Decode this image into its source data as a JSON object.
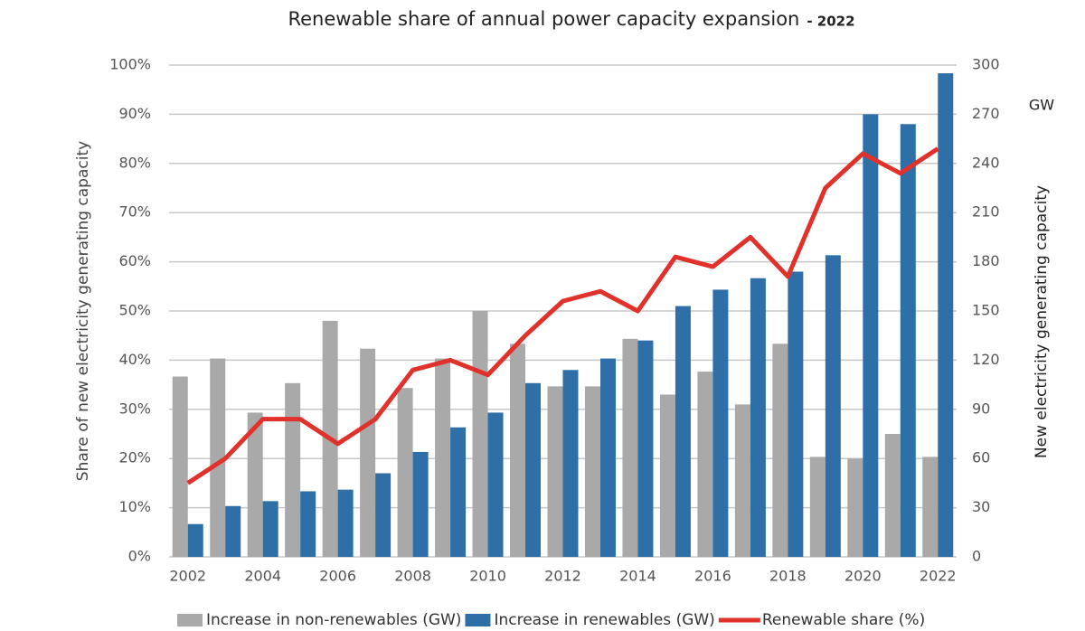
{
  "chart_data": {
    "type": "bar-line",
    "title": "Renewable share of annual power capacity expansion",
    "title_suffix": "- 2022",
    "y_label": "Share of new electricity generating capacity",
    "y2_label": "New electricity generating capacity",
    "y2_unit": "GW",
    "categories": [
      "2002",
      null,
      "2004",
      null,
      "2006",
      null,
      "2008",
      null,
      "2010",
      null,
      "2012",
      null,
      "2014",
      null,
      "2016",
      null,
      "2018",
      null,
      "2020",
      null,
      "2022"
    ],
    "series": [
      {
        "name": "Increase in non-renewables (GW)",
        "color": "#a9a9a9",
        "kind": "bar",
        "axis": "y2",
        "values": [
          110,
          121,
          88,
          106,
          144,
          127,
          103,
          121,
          150,
          130,
          104,
          104,
          133,
          99,
          113,
          93,
          130,
          61,
          60,
          75,
          61
        ]
      },
      {
        "name": "Increase in renewables (GW)",
        "color": "#2e6fa7",
        "kind": "bar",
        "axis": "y2",
        "values": [
          20,
          31,
          34,
          40,
          41,
          51,
          64,
          79,
          88,
          106,
          114,
          121,
          132,
          153,
          163,
          170,
          174,
          184,
          270,
          264,
          295
        ]
      },
      {
        "name": "Renewable share (%)",
        "color": "#e0312b",
        "kind": "line",
        "values": [
          15,
          20,
          28,
          28,
          23,
          28,
          38,
          40,
          37,
          45,
          52,
          54,
          50,
          61,
          59,
          65,
          57,
          75,
          82,
          78,
          83
        ]
      }
    ],
    "ylim": [
      0,
      100
    ],
    "yticks": [
      {
        "value": 0,
        "label": "0%"
      },
      {
        "value": 10,
        "label": "10%"
      },
      {
        "value": 20,
        "label": "20%"
      },
      {
        "value": 30,
        "label": "30%"
      },
      {
        "value": 40,
        "label": "40%"
      },
      {
        "value": 50,
        "label": "50%"
      },
      {
        "value": 60,
        "label": "60%"
      },
      {
        "value": 70,
        "label": "70%"
      },
      {
        "value": 80,
        "label": "80%"
      },
      {
        "value": 90,
        "label": "90%"
      },
      {
        "value": 100,
        "label": "100%"
      }
    ],
    "y2lim": [
      0,
      300
    ],
    "y2ticks": [
      0,
      30,
      60,
      90,
      120,
      150,
      180,
      210,
      240,
      270,
      300
    ],
    "grid": true
  }
}
